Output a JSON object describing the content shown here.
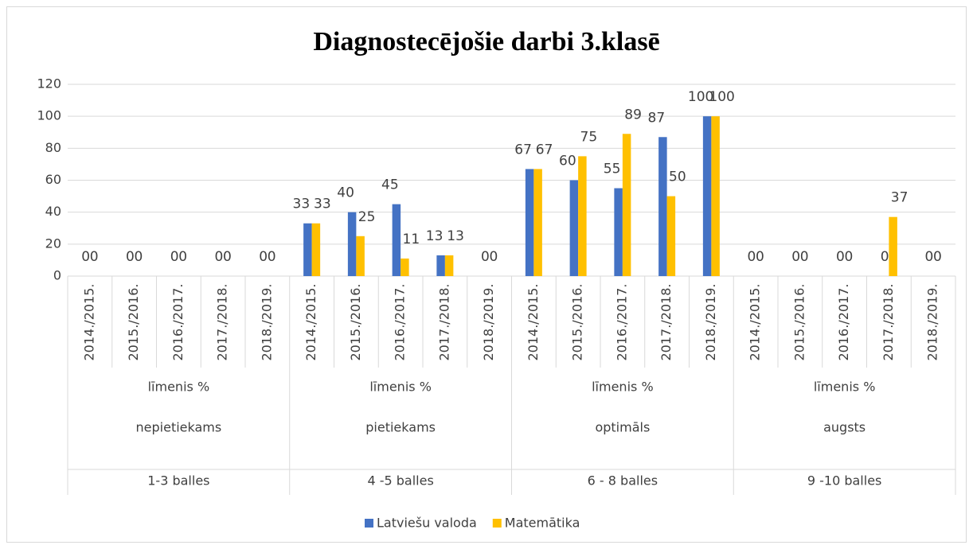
{
  "chart_data": {
    "type": "bar",
    "title": "Diagnostecējošie darbi 3.klasē",
    "categories": [
      "2014./2015.",
      "2015./2016.",
      "2016./2017.",
      "2017./2018.",
      "2018./2019.",
      "2014./2015.",
      "2015./2016.",
      "2016./2017.",
      "2017./2018.",
      "2018./2019.",
      "2014./2015.",
      "2015./2016.",
      "2016./2017.",
      "2017./2018.",
      "2018./2019.",
      "2014./2015.",
      "2015./2016.",
      "2016./2017.",
      "2017./2018.",
      "2018./2019."
    ],
    "groups": [
      {
        "labels": [
          "līmenis %",
          "nepietiekams",
          "1-3 balles"
        ]
      },
      {
        "labels": [
          "līmenis %",
          "pietiekams",
          "4 -5 balles"
        ]
      },
      {
        "labels": [
          "līmenis %",
          "optimāls",
          "6 - 8 balles"
        ]
      },
      {
        "labels": [
          "līmenis %",
          "augsts",
          "9 -10 balles"
        ]
      }
    ],
    "series": [
      {
        "name": "Latviešu valoda",
        "color": "#4472c4",
        "values": [
          0,
          0,
          0,
          0,
          0,
          33,
          40,
          45,
          13,
          0,
          67,
          60,
          55,
          87,
          100,
          0,
          0,
          0,
          0,
          0
        ]
      },
      {
        "name": "Matemātika",
        "color": "#ffc000",
        "values": [
          0,
          0,
          0,
          0,
          0,
          33,
          25,
          11,
          13,
          0,
          67,
          75,
          89,
          50,
          100,
          0,
          0,
          0,
          37,
          0
        ]
      }
    ],
    "ylim": [
      0,
      120
    ],
    "yticks": [
      0,
      20,
      40,
      60,
      80,
      100,
      120
    ],
    "grid": true,
    "legend": "bottom"
  }
}
